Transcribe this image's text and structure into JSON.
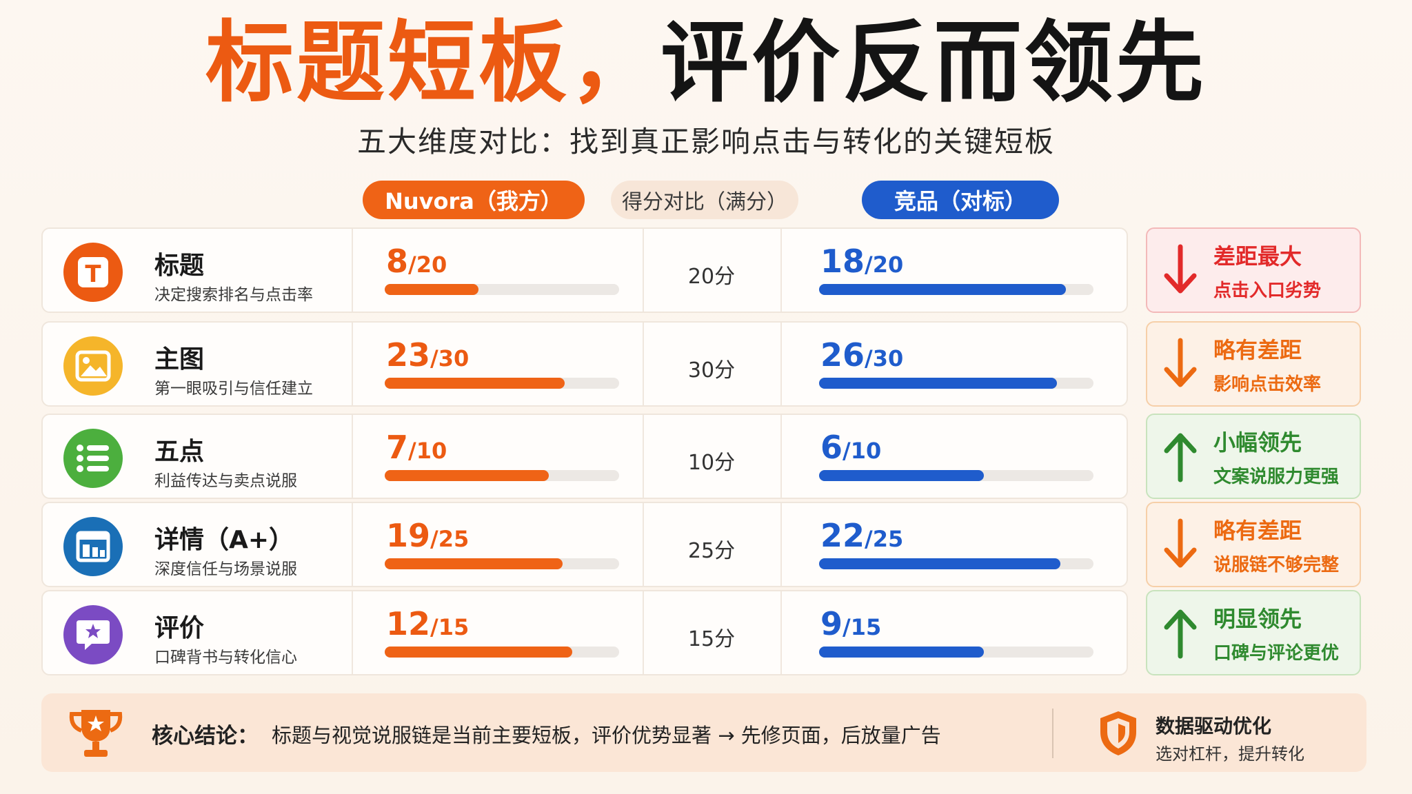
{
  "title": {
    "part1": "标题短板，",
    "part2": "评价反而领先"
  },
  "subtitle": "五大维度对比：找到真正影响点击与转化的关键短板",
  "headers": {
    "ours": "Nuvora（我方）",
    "middle": "得分对比（满分）",
    "theirs": "竞品（对标）"
  },
  "colors": {
    "ours": "#ef6316",
    "theirs": "#1f5ccc",
    "red": "#e22a2a",
    "orange": "#ec6a12",
    "green": "#2f8a2f"
  },
  "rows": [
    {
      "icon": "title-t-icon",
      "name": "标题",
      "desc": "决定搜索排名与点击率",
      "ours_score": "8",
      "ours_max": "/20",
      "theirs_score": "18",
      "theirs_max": "/20",
      "max_label": "20分",
      "card_title": "差距最大",
      "card_sub": "点击入口劣势"
    },
    {
      "icon": "image-icon",
      "name": "主图",
      "desc": "第一眼吸引与信任建立",
      "ours_score": "23",
      "ours_max": "/30",
      "theirs_score": "26",
      "theirs_max": "/30",
      "max_label": "30分",
      "card_title": "略有差距",
      "card_sub": "影响点击效率"
    },
    {
      "icon": "list-icon",
      "name": "五点",
      "desc": "利益传达与卖点说服",
      "ours_score": "7",
      "ours_max": "/10",
      "theirs_score": "6",
      "theirs_max": "/10",
      "max_label": "10分",
      "card_title": "小幅领先",
      "card_sub": "文案说服力更强"
    },
    {
      "icon": "layout-icon",
      "name": "详情（A+）",
      "desc": "深度信任与场景说服",
      "ours_score": "19",
      "ours_max": "/25",
      "theirs_score": "22",
      "theirs_max": "/25",
      "max_label": "25分",
      "card_title": "略有差距",
      "card_sub": "说服链不够完整"
    },
    {
      "icon": "star-chat-icon",
      "name": "评价",
      "desc": "口碑背书与转化信心",
      "ours_score": "12",
      "ours_max": "/15",
      "theirs_score": "9",
      "theirs_max": "/15",
      "max_label": "15分",
      "card_title": "明显领先",
      "card_sub": "口碑与评论更优"
    }
  ],
  "chart_data": {
    "type": "bar",
    "categories": [
      "标题",
      "主图",
      "五点",
      "详情（A+）",
      "评价"
    ],
    "series": [
      {
        "name": "Nuvora（我方）",
        "values": [
          8,
          23,
          7,
          19,
          12
        ]
      },
      {
        "name": "竞品（对标）",
        "values": [
          18,
          26,
          6,
          22,
          9
        ]
      }
    ],
    "max": [
      20,
      30,
      10,
      25,
      15
    ],
    "title": "标题短板，评价反而领先",
    "subtitle": "五大维度对比：找到真正影响点击与转化的关键短板"
  },
  "conclusion": {
    "label": "核心结论：",
    "text": "标题与视觉说服链是当前主要短板，评价优势显著 → 先修页面，后放量广告",
    "side_title": "数据驱动优化",
    "side_sub": "选对杠杆，提升转化"
  }
}
